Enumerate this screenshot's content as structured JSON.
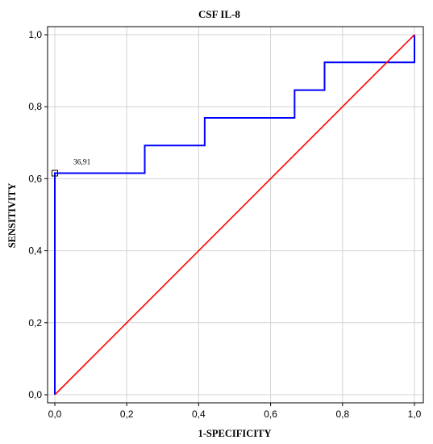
{
  "chart_data": {
    "type": "line",
    "title": "CSF IL-8",
    "xlabel": "1-SPECIFICITY",
    "ylabel": "SENSITIVITY",
    "xlim": [
      0,
      1
    ],
    "ylim": [
      0,
      1
    ],
    "x_ticks": [
      "0,0",
      "0,2",
      "0,4",
      "0,6",
      "0,8",
      "1,0"
    ],
    "y_ticks": [
      "0,0",
      "0,2",
      "0,4",
      "0,6",
      "0,8",
      "1,0"
    ],
    "grid": true,
    "series": [
      {
        "color": "#0000ff",
        "x": [
          0,
          0,
          0.25,
          0.25,
          0.4167,
          0.4167,
          0.6667,
          0.6667,
          0.75,
          0.75,
          1.0,
          1.0
        ],
        "y": [
          0,
          0.6154,
          0.6154,
          0.6923,
          0.6923,
          0.7692,
          0.7692,
          0.8462,
          0.8462,
          0.9231,
          0.9231,
          1.0
        ]
      },
      {
        "color": "#ff0000",
        "x": [
          0,
          1
        ],
        "y": [
          0,
          1
        ]
      }
    ],
    "annotations": [
      {
        "text": "36,91",
        "x": 0,
        "y": 0.6154
      }
    ]
  }
}
